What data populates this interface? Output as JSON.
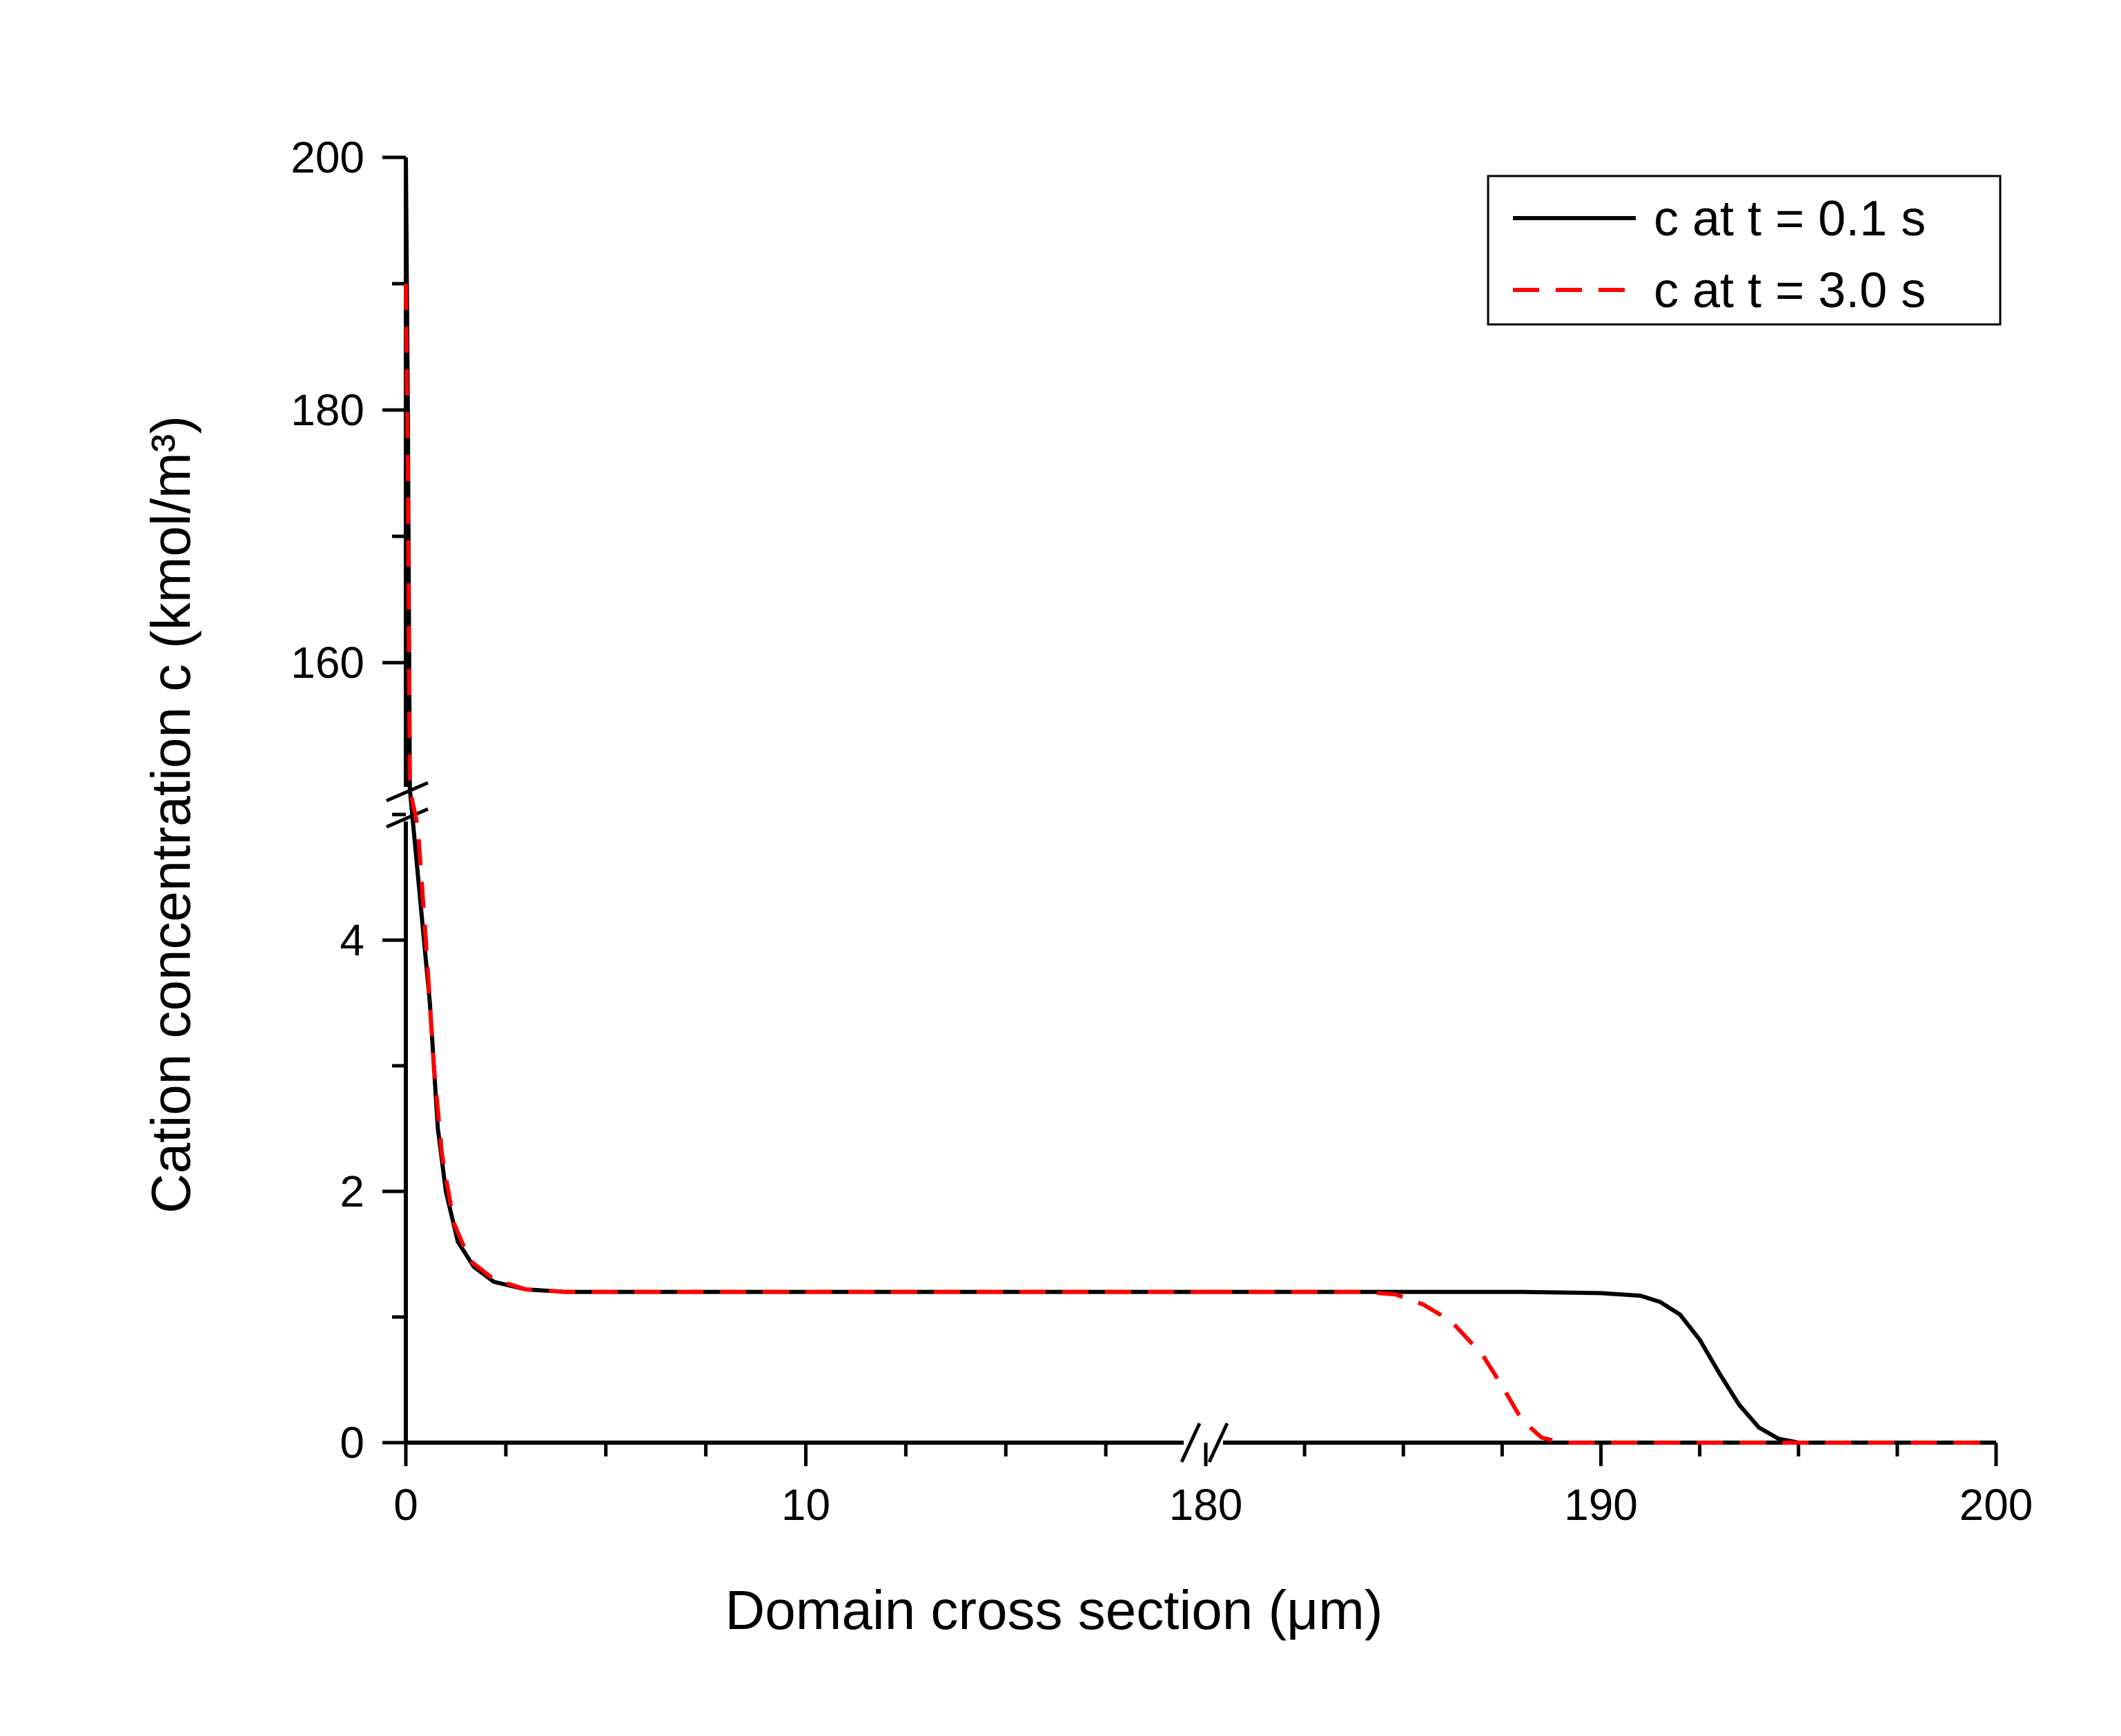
{
  "chart_data": {
    "type": "line",
    "xlabel": "Domain cross section (μm)",
    "ylabel": "Cation concentration c (kmol/m³)",
    "x_axis": {
      "broken": true,
      "segments": [
        {
          "range": [
            0,
            20
          ],
          "ticks": [
            0,
            10
          ]
        },
        {
          "range": [
            180,
            200
          ],
          "ticks": [
            180,
            190,
            200
          ]
        }
      ]
    },
    "y_axis": {
      "broken": true,
      "segments": [
        {
          "range": [
            0,
            5
          ],
          "ticks": [
            0,
            2,
            4
          ]
        },
        {
          "range": [
            150,
            200
          ],
          "ticks": [
            160,
            180,
            200
          ]
        }
      ]
    },
    "legend_position": "top-right",
    "series": [
      {
        "name": "c at t = 0.1 s",
        "color": "#000000",
        "dash": "solid",
        "points": [
          [
            0,
            200
          ],
          [
            0.05,
            180
          ],
          [
            0.1,
            150
          ],
          [
            0.6,
            3.5
          ],
          [
            0.8,
            2.5
          ],
          [
            1.0,
            2.0
          ],
          [
            1.3,
            1.6
          ],
          [
            1.7,
            1.4
          ],
          [
            2.2,
            1.28
          ],
          [
            3.0,
            1.22
          ],
          [
            4.0,
            1.2
          ],
          [
            20,
            1.2
          ],
          [
            180,
            1.2
          ],
          [
            188,
            1.2
          ],
          [
            190,
            1.19
          ],
          [
            191,
            1.17
          ],
          [
            191.5,
            1.12
          ],
          [
            192,
            1.02
          ],
          [
            192.5,
            0.82
          ],
          [
            193,
            0.55
          ],
          [
            193.5,
            0.3
          ],
          [
            194,
            0.12
          ],
          [
            194.5,
            0.03
          ],
          [
            195,
            0.0
          ],
          [
            200,
            0.0
          ]
        ]
      },
      {
        "name": "c at t = 3.0 s",
        "color": "#ff0000",
        "dash": "dashed",
        "points": [
          [
            0,
            190
          ],
          [
            0.05,
            175
          ],
          [
            0.1,
            150
          ],
          [
            0.3,
            4.9
          ],
          [
            0.5,
            4.0
          ],
          [
            0.7,
            3.0
          ],
          [
            0.9,
            2.3
          ],
          [
            1.2,
            1.75
          ],
          [
            1.6,
            1.45
          ],
          [
            2.2,
            1.3
          ],
          [
            3.0,
            1.22
          ],
          [
            4.0,
            1.2
          ],
          [
            20,
            1.2
          ],
          [
            180,
            1.2
          ],
          [
            184,
            1.2
          ],
          [
            184.8,
            1.18
          ],
          [
            185.5,
            1.1
          ],
          [
            186.2,
            0.97
          ],
          [
            187,
            0.7
          ],
          [
            187.5,
            0.45
          ],
          [
            188,
            0.18
          ],
          [
            188.5,
            0.04
          ],
          [
            189,
            0.0
          ],
          [
            200,
            0.0
          ]
        ]
      }
    ]
  }
}
